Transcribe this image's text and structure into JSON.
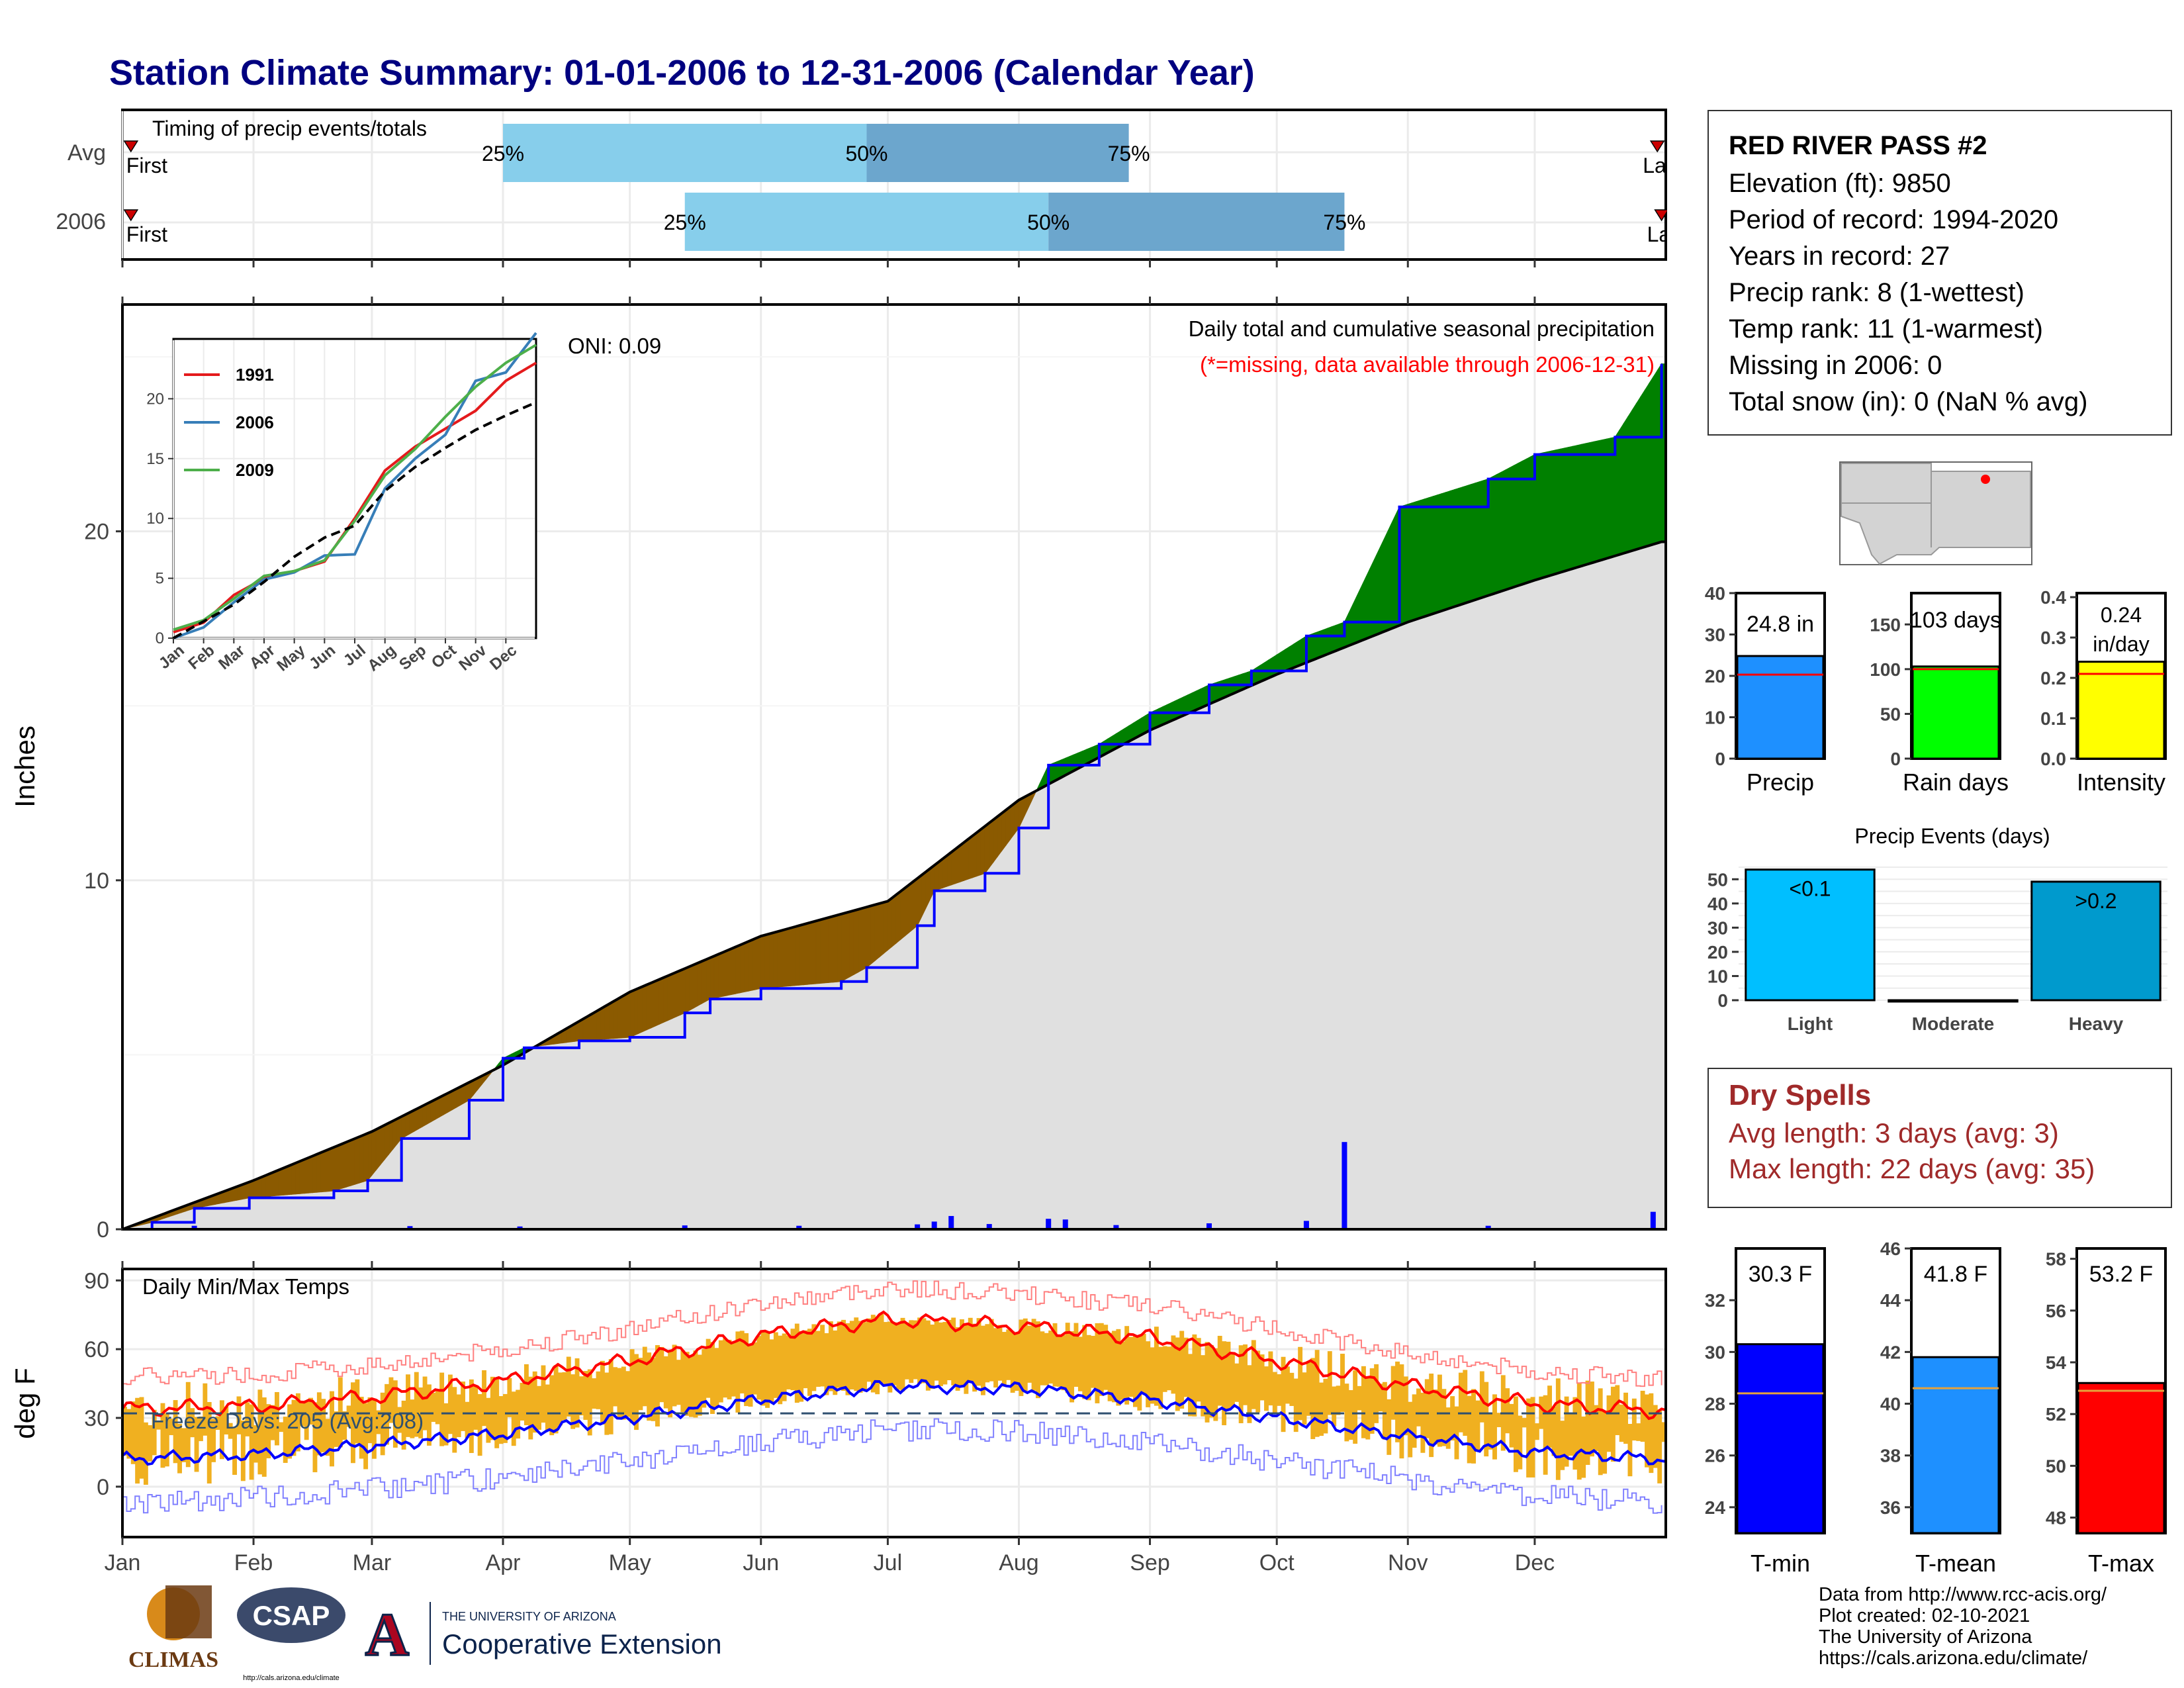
{
  "title": "Station Climate Summary: 01-01-2006 to 12-31-2006 (Calendar Year)",
  "timing": {
    "label": "Timing of precip events/totals",
    "rows": [
      {
        "label": "Avg",
        "first_label": "First",
        "last_label": "Last",
        "p25_date": "2006-04-01",
        "p50_date": "2006-06-26",
        "p75_date": "2006-08-27",
        "first_date": "2006-01-03",
        "last_date": "2006-12-30"
      },
      {
        "label": "2006",
        "first_label": "First",
        "last_label": "Last",
        "p25_date": "2006-05-14",
        "p50_date": "2006-08-08",
        "p75_date": "2006-10-17",
        "first_date": "2006-01-03",
        "last_date": "2006-12-31"
      }
    ],
    "pct_labels": [
      "25%",
      "50%",
      "75%"
    ],
    "colors": {
      "light": "#87ceeb",
      "dark": "#6ca6cd",
      "marker": "#cc0000"
    }
  },
  "station": {
    "name": "RED RIVER PASS #2",
    "lines": [
      "Elevation (ft): 9850",
      "Period of record: 1994-2020",
      "Years in record: 27",
      "Precip rank: 8 (1-wettest)",
      "Temp rank: 11 (1-warmest)",
      "Missing in 2006: 0",
      "Total snow (in): 0 (NaN % avg)"
    ]
  },
  "precip_panel": {
    "ylabel": "Inches",
    "title_line1": "Daily total and cumulative seasonal precipitation",
    "title_line2": "(*=missing, data available through 2006-12-31)",
    "oni": "ONI: 0.09",
    "ylim": [
      0,
      26.5
    ],
    "yticks": [
      0,
      10,
      20
    ],
    "colors": {
      "wet": "#008000",
      "dry": "#8b5a00",
      "obs_line": "#0000ff",
      "avg_fill": "#e0e0e0",
      "avg_line": "#000000",
      "daily_bar": "#0000ff"
    }
  },
  "months": [
    "Jan",
    "Feb",
    "Mar",
    "Apr",
    "May",
    "Jun",
    "Jul",
    "Aug",
    "Sep",
    "Oct",
    "Nov",
    "Dec"
  ],
  "chart_data": [
    {
      "type": "area",
      "title": "Daily total and cumulative seasonal precipitation",
      "ylabel": "Inches",
      "ylim": [
        0,
        26.5
      ],
      "series": [
        {
          "name": "Cumulative 2006",
          "x": [
            "2006-01-01",
            "2006-01-08",
            "2006-01-18",
            "2006-01-31",
            "2006-02-20",
            "2006-02-28",
            "2006-03-08",
            "2006-03-24",
            "2006-04-01",
            "2006-04-06",
            "2006-04-19",
            "2006-05-01",
            "2006-05-14",
            "2006-05-20",
            "2006-06-01",
            "2006-06-20",
            "2006-06-26",
            "2006-07-08",
            "2006-07-12",
            "2006-07-24",
            "2006-08-01",
            "2006-08-08",
            "2006-08-20",
            "2006-09-01",
            "2006-09-15",
            "2006-09-25",
            "2006-10-08",
            "2006-10-17",
            "2006-10-30",
            "2006-11-20",
            "2006-12-01",
            "2006-12-20",
            "2006-12-31"
          ],
          "y": [
            0.0,
            0.2,
            0.6,
            0.9,
            1.1,
            1.4,
            2.6,
            3.7,
            4.9,
            5.2,
            5.4,
            5.5,
            6.2,
            6.6,
            6.9,
            7.1,
            7.5,
            8.7,
            9.7,
            10.2,
            11.5,
            13.3,
            13.9,
            14.8,
            15.6,
            16.0,
            17.0,
            17.4,
            20.7,
            21.5,
            22.2,
            22.7,
            24.8
          ]
        },
        {
          "name": "Average",
          "x": [
            "2006-01-01",
            "2006-02-01",
            "2006-03-01",
            "2006-04-01",
            "2006-05-01",
            "2006-06-01",
            "2006-07-01",
            "2006-08-01",
            "2006-09-01",
            "2006-10-01",
            "2006-11-01",
            "2006-12-01",
            "2006-12-31"
          ],
          "y": [
            0.0,
            1.4,
            2.8,
            4.7,
            6.8,
            8.4,
            9.4,
            12.3,
            14.3,
            15.9,
            17.4,
            18.6,
            19.7
          ]
        }
      ],
      "daily_precip": [
        {
          "x": "2006-01-18",
          "y": 0.1
        },
        {
          "x": "2006-03-10",
          "y": 0.09
        },
        {
          "x": "2006-04-05",
          "y": 0.08
        },
        {
          "x": "2006-05-14",
          "y": 0.11
        },
        {
          "x": "2006-06-10",
          "y": 0.1
        },
        {
          "x": "2006-07-08",
          "y": 0.14
        },
        {
          "x": "2006-07-12",
          "y": 0.22
        },
        {
          "x": "2006-07-16",
          "y": 0.38
        },
        {
          "x": "2006-07-25",
          "y": 0.15
        },
        {
          "x": "2006-08-08",
          "y": 0.3
        },
        {
          "x": "2006-08-12",
          "y": 0.28
        },
        {
          "x": "2006-08-24",
          "y": 0.12
        },
        {
          "x": "2006-09-15",
          "y": 0.17
        },
        {
          "x": "2006-10-08",
          "y": 0.24
        },
        {
          "x": "2006-10-17",
          "y": 2.5
        },
        {
          "x": "2006-11-20",
          "y": 0.1
        },
        {
          "x": "2006-12-29",
          "y": 0.5
        }
      ]
    },
    {
      "type": "line",
      "title": "",
      "categories": [
        "Jan",
        "Feb",
        "Mar",
        "Apr",
        "May",
        "Jun",
        "Jul",
        "Aug",
        "Sep",
        "Oct",
        "Nov",
        "Dec"
      ],
      "ylim": [
        0,
        25
      ],
      "series": [
        {
          "name": "1991",
          "x": [
            0,
            1,
            2,
            3,
            4,
            5,
            6,
            7,
            8,
            9,
            10,
            11,
            12
          ],
          "y": [
            0.5,
            1.3,
            3.6,
            5.0,
            5.6,
            6.4,
            10.0,
            14.0,
            16.0,
            17.5,
            19.0,
            21.5,
            23.0
          ]
        },
        {
          "name": "2006",
          "x": [
            0,
            1,
            2,
            3,
            4,
            5,
            6,
            7,
            8,
            9,
            10,
            11,
            12
          ],
          "y": [
            0.0,
            0.9,
            3.0,
            4.9,
            5.5,
            6.9,
            7.0,
            12.5,
            15.0,
            17.0,
            21.5,
            22.2,
            25.5
          ]
        },
        {
          "name": "2009",
          "x": [
            0,
            1,
            2,
            3,
            4,
            5,
            6,
            7,
            8,
            9,
            10,
            11,
            12
          ],
          "y": [
            0.7,
            1.5,
            3.3,
            5.2,
            5.6,
            6.5,
            9.8,
            13.6,
            15.8,
            18.5,
            21.0,
            23.0,
            24.5
          ]
        },
        {
          "name": "Average",
          "x": [
            0,
            1,
            2,
            3,
            4,
            5,
            6,
            7,
            8,
            9,
            10,
            11,
            12
          ],
          "y": [
            0.0,
            1.4,
            2.8,
            4.7,
            6.8,
            8.4,
            9.4,
            12.3,
            14.3,
            15.9,
            17.4,
            18.6,
            19.7
          ]
        }
      ]
    },
    {
      "type": "line",
      "title": "Daily Min/Max Temps",
      "ylabel": "deg F",
      "ylim": [
        -22,
        95
      ],
      "yticks": [
        0,
        30,
        60,
        90
      ],
      "freeze_line": 32,
      "series": [
        {
          "name": "Avg Tmax",
          "x": [
            "2006-01-01",
            "2006-02-01",
            "2006-03-01",
            "2006-04-01",
            "2006-05-01",
            "2006-06-01",
            "2006-07-01",
            "2006-08-01",
            "2006-09-01",
            "2006-10-01",
            "2006-11-01",
            "2006-12-01",
            "2006-12-31"
          ],
          "y": [
            34,
            35,
            39,
            46,
            55,
            66,
            73,
            70,
            65,
            55,
            44,
            36,
            33
          ]
        },
        {
          "name": "Avg Tmin",
          "x": [
            "2006-01-01",
            "2006-02-01",
            "2006-03-01",
            "2006-04-01",
            "2006-05-01",
            "2006-06-01",
            "2006-07-01",
            "2006-08-01",
            "2006-09-01",
            "2006-10-01",
            "2006-11-01",
            "2006-12-01",
            "2006-12-31"
          ],
          "y": [
            12,
            14,
            18,
            23,
            30,
            38,
            44,
            43,
            38,
            30,
            22,
            15,
            12
          ]
        }
      ]
    },
    {
      "type": "bar",
      "title": "Precip",
      "categories": [
        "Precip"
      ],
      "values": [
        24.8
      ],
      "avg": 20.3,
      "ylim": [
        0,
        40
      ],
      "yticks": [
        0,
        10,
        20,
        30,
        40
      ],
      "label": "24.8 in",
      "color": "#1e90ff"
    },
    {
      "type": "bar",
      "title": "Rain days",
      "categories": [
        "Rain days"
      ],
      "values": [
        103
      ],
      "avg": 100,
      "ylim": [
        0,
        185
      ],
      "yticks": [
        0,
        50,
        100,
        150
      ],
      "label": "103 days",
      "color": "#00ff00"
    },
    {
      "type": "bar",
      "title": "Intensity",
      "categories": [
        "Intensity"
      ],
      "values": [
        0.24
      ],
      "avg": 0.21,
      "ylim": [
        0,
        0.41
      ],
      "yticks": [
        0.0,
        0.1,
        0.2,
        0.3,
        0.4
      ],
      "label_line1": "0.24",
      "label_line2": "in/day",
      "color": "#ffff00"
    },
    {
      "type": "bar",
      "title": "Precip Events (days)",
      "categories": [
        "Light",
        "Moderate",
        "Heavy"
      ],
      "values": [
        54,
        0,
        49
      ],
      "labels": [
        "<0.1",
        "",
        ">0.2"
      ],
      "ylim": [
        0,
        55
      ],
      "yticks": [
        0,
        10,
        20,
        30,
        40,
        50
      ],
      "colors": [
        "#00bfff",
        "#6ca6cd",
        "#009acd"
      ]
    },
    {
      "type": "bar",
      "title": "T-min",
      "categories": [
        "T-min"
      ],
      "values": [
        30.3
      ],
      "avg": 28.4,
      "ylim": [
        23,
        34
      ],
      "yticks": [
        24,
        26,
        28,
        30,
        32
      ],
      "label": "30.3 F",
      "color": "#0000ff"
    },
    {
      "type": "bar",
      "title": "T-mean",
      "categories": [
        "T-mean"
      ],
      "values": [
        41.8
      ],
      "avg": 40.6,
      "ylim": [
        35,
        46
      ],
      "yticks": [
        36,
        38,
        40,
        42,
        44,
        46
      ],
      "label": "41.8 F",
      "color": "#1e90ff"
    },
    {
      "type": "bar",
      "title": "T-max",
      "categories": [
        "T-max"
      ],
      "values": [
        53.2
      ],
      "avg": 52.9,
      "ylim": [
        47.4,
        58.4
      ],
      "yticks": [
        48,
        50,
        52,
        54,
        56,
        58
      ],
      "label": "53.2 F",
      "color": "#ff0000"
    }
  ],
  "temp_panel": {
    "title": "Daily Min/Max Temps",
    "ylabel": "deg F",
    "freeze_text": "Freeze Days: 205 (Avg:208)",
    "colors": {
      "bars": "#f0b020",
      "avg_max": "#ff0000",
      "avg_min": "#0000ff",
      "rec_max": "#ff8080",
      "rec_min": "#8080ff",
      "freeze": "#2f4f6f"
    }
  },
  "inset": {
    "legend": [
      "1991",
      "2006",
      "2009"
    ],
    "colors": [
      "#e41a1c",
      "#377eb8",
      "#4daf4a"
    ]
  },
  "dry_spells": {
    "title": "Dry Spells",
    "line1": "Avg length: 3 days (avg: 3)",
    "line2": "Max length: 22 days (avg: 35)"
  },
  "footer": {
    "lines": [
      "Data from http://www.rcc-acis.org/",
      "Plot created: 02-10-2021",
      "The University of Arizona",
      "https://cals.arizona.edu/climate/"
    ]
  },
  "logos": {
    "climas": "CLIMAS",
    "csap": "CSAP",
    "csap_url": "http://cals.arizona.edu/climate",
    "ua_small": "THE UNIVERSITY OF ARIZONA",
    "ua_big": "Cooperative Extension"
  }
}
